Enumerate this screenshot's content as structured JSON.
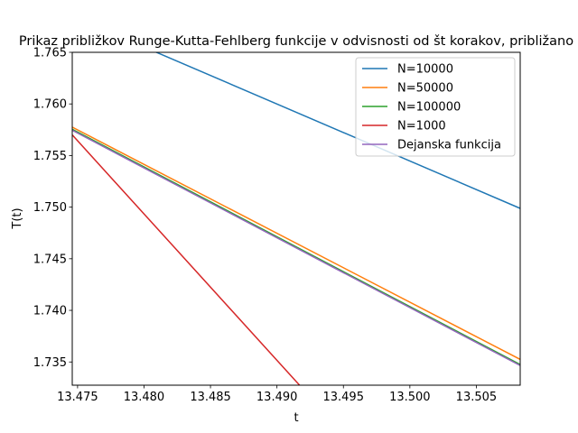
{
  "chart_data": {
    "type": "line",
    "title": "Prikaz približkov Runge-Kutta-Fehlberg funkcije v odvisnosti od št korakov, približano",
    "xlabel": "t",
    "ylabel": "T(t)",
    "xlim": [
      13.4746,
      13.5083
    ],
    "ylim": [
      1.73275,
      1.765
    ],
    "xticks": [
      13.475,
      13.48,
      13.485,
      13.49,
      13.495,
      13.5,
      13.505
    ],
    "xtick_labels": [
      "13.475",
      "13.480",
      "13.485",
      "13.490",
      "13.495",
      "13.500",
      "13.505"
    ],
    "yticks": [
      1.735,
      1.74,
      1.745,
      1.75,
      1.755,
      1.76,
      1.765
    ],
    "ytick_labels": [
      "1.735",
      "1.740",
      "1.745",
      "1.750",
      "1.755",
      "1.760",
      "1.765"
    ],
    "grid": false,
    "legend_position": "top-right",
    "series": [
      {
        "name": "N=10000",
        "color": "#1f77b4",
        "x": [
          13.4746,
          13.5083
        ],
        "y": [
          1.7685,
          1.74988
        ]
      },
      {
        "name": "N=50000",
        "color": "#ff7f0e",
        "x": [
          13.4746,
          13.5083
        ],
        "y": [
          1.75775,
          1.73525
        ]
      },
      {
        "name": "N=100000",
        "color": "#2ca02c",
        "x": [
          13.4746,
          13.5083
        ],
        "y": [
          1.75755,
          1.73475
        ]
      },
      {
        "name": "N=1000",
        "color": "#d62728",
        "x": [
          13.4746,
          13.4917
        ],
        "y": [
          1.757,
          1.73275
        ]
      },
      {
        "name": "Dejanska funkcija",
        "color": "#9467bd",
        "x": [
          13.4746,
          13.5083
        ],
        "y": [
          1.75745,
          1.73465
        ]
      }
    ]
  }
}
